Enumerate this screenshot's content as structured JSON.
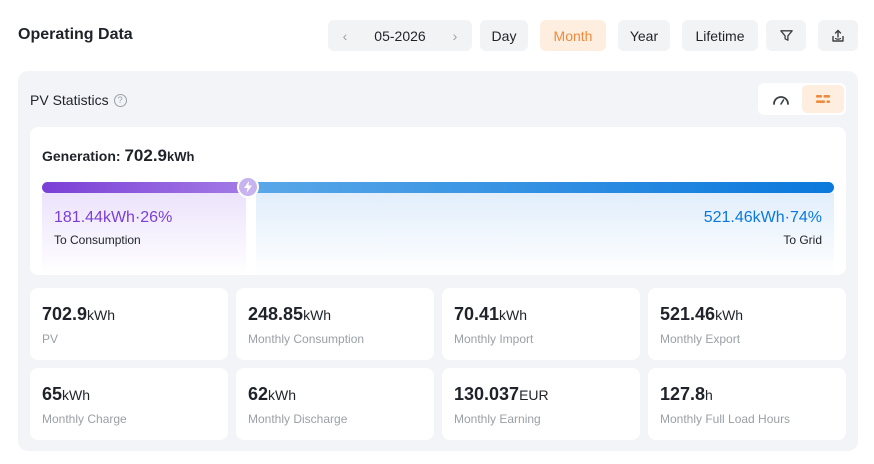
{
  "header": {
    "title": "Operating Data",
    "date": {
      "prev_icon": "chevron-left-icon",
      "value": "05-2026",
      "next_icon": "chevron-right-icon"
    },
    "periods": [
      {
        "label": "Day",
        "active": false
      },
      {
        "label": "Month",
        "active": true
      },
      {
        "label": "Year",
        "active": false
      },
      {
        "label": "Lifetime",
        "active": false
      }
    ],
    "filter_icon": "filter-icon",
    "export_icon": "export-icon",
    "accent_color": "#f08a3c"
  },
  "panel": {
    "title": "PV Statistics",
    "help_icon": "?",
    "view_toggle": [
      {
        "icon": "gauge-icon",
        "active": false
      },
      {
        "icon": "list-bars-icon",
        "active": true
      }
    ]
  },
  "generation": {
    "label": "Generation:",
    "value": "702.9",
    "unit": "kWh",
    "consumption": {
      "value": "181.44kWh·26%",
      "label": "To Consumption",
      "percent": 26,
      "color": "#7b3fd6"
    },
    "grid": {
      "value": "521.46kWh·74%",
      "label": "To Grid",
      "percent": 74,
      "color": "#0a78dc"
    }
  },
  "stats": [
    {
      "value": "702.9",
      "unit": "kWh",
      "label": "PV"
    },
    {
      "value": "248.85",
      "unit": "kWh",
      "label": "Monthly Consumption"
    },
    {
      "value": "70.41",
      "unit": "kWh",
      "label": "Monthly Import"
    },
    {
      "value": "521.46",
      "unit": "kWh",
      "label": "Monthly Export"
    },
    {
      "value": "65",
      "unit": "kWh",
      "label": "Monthly Charge"
    },
    {
      "value": "62",
      "unit": "kWh",
      "label": "Monthly Discharge"
    },
    {
      "value": "130.037",
      "unit": "EUR",
      "label": "Monthly Earning"
    },
    {
      "value": "127.8",
      "unit": "h",
      "label": "Monthly Full Load Hours"
    }
  ]
}
